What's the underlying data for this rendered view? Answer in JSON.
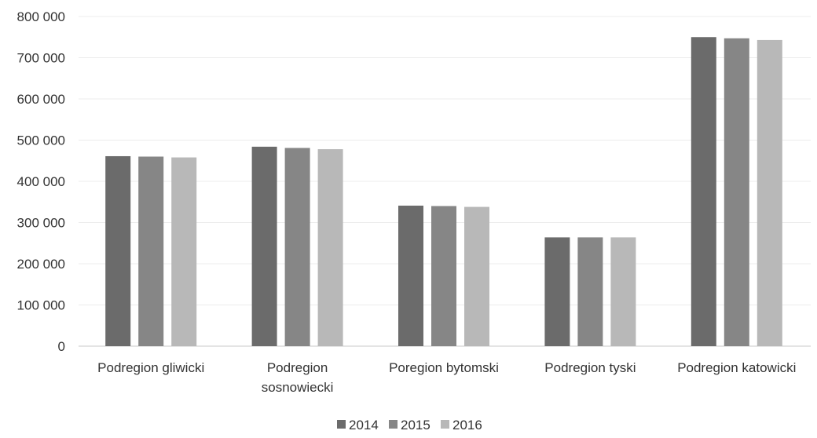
{
  "chart_data": {
    "type": "bar",
    "categories": [
      "Podregion gliwicki",
      "Podregion sosnowiecki",
      "Poregion bytomski",
      "Podregion tyski",
      "Podregion katowicki"
    ],
    "category_label_lines": [
      [
        "Podregion gliwicki"
      ],
      [
        "Podregion",
        "sosnowiecki"
      ],
      [
        "Poregion bytomski"
      ],
      [
        "Podregion tyski"
      ],
      [
        "Podregion katowicki"
      ]
    ],
    "series": [
      {
        "name": "2014",
        "values": [
          461000,
          484000,
          341000,
          264000,
          750000
        ],
        "color": "#6b6b6b"
      },
      {
        "name": "2015",
        "values": [
          460000,
          481000,
          340000,
          264000,
          747000
        ],
        "color": "#868686"
      },
      {
        "name": "2016",
        "values": [
          458000,
          478000,
          338000,
          264000,
          743000
        ],
        "color": "#b8b8b8"
      }
    ],
    "ylim": [
      0,
      800000
    ],
    "y_ticks": [
      0,
      100000,
      200000,
      300000,
      400000,
      500000,
      600000,
      700000,
      800000
    ],
    "y_tick_labels": [
      "0",
      "100 000",
      "200 000",
      "300 000",
      "400 000",
      "500 000",
      "600 000",
      "700 000",
      "800 000"
    ],
    "grid": true,
    "legend_position": "bottom",
    "title": "",
    "xlabel": "",
    "ylabel": ""
  }
}
